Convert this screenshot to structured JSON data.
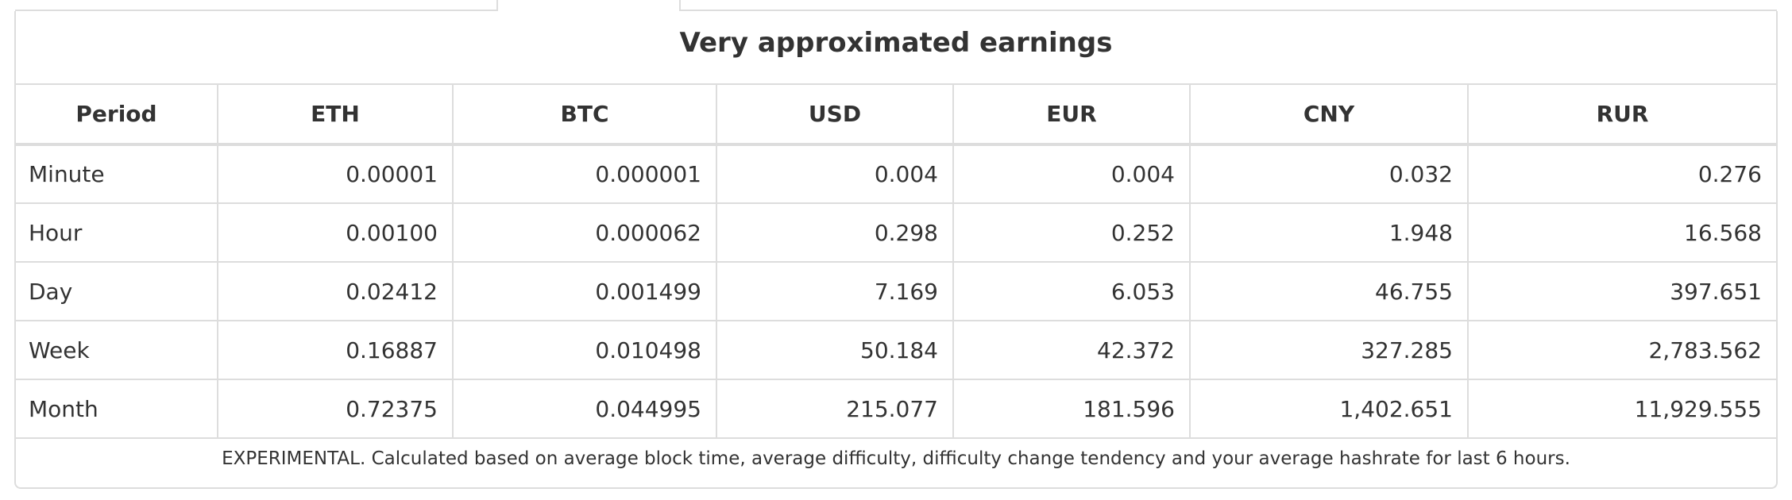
{
  "panel": {
    "title": "Very approximated earnings",
    "footnote": "EXPERIMENTAL. Calculated based on average block time, average difficulty, difficulty change tendency and your average hashrate for last 6 hours."
  },
  "table": {
    "headers": [
      "Period",
      "ETH",
      "BTC",
      "USD",
      "EUR",
      "CNY",
      "RUR"
    ],
    "rows": [
      [
        "Minute",
        "0.00001",
        "0.000001",
        "0.004",
        "0.004",
        "0.032",
        "0.276"
      ],
      [
        "Hour",
        "0.00100",
        "0.000062",
        "0.298",
        "0.252",
        "1.948",
        "16.568"
      ],
      [
        "Day",
        "0.02412",
        "0.001499",
        "7.169",
        "6.053",
        "46.755",
        "397.651"
      ],
      [
        "Week",
        "0.16887",
        "0.010498",
        "50.184",
        "42.372",
        "327.285",
        "2,783.562"
      ],
      [
        "Month",
        "0.72375",
        "0.044995",
        "215.077",
        "181.596",
        "1,402.651",
        "11,929.555"
      ]
    ]
  }
}
